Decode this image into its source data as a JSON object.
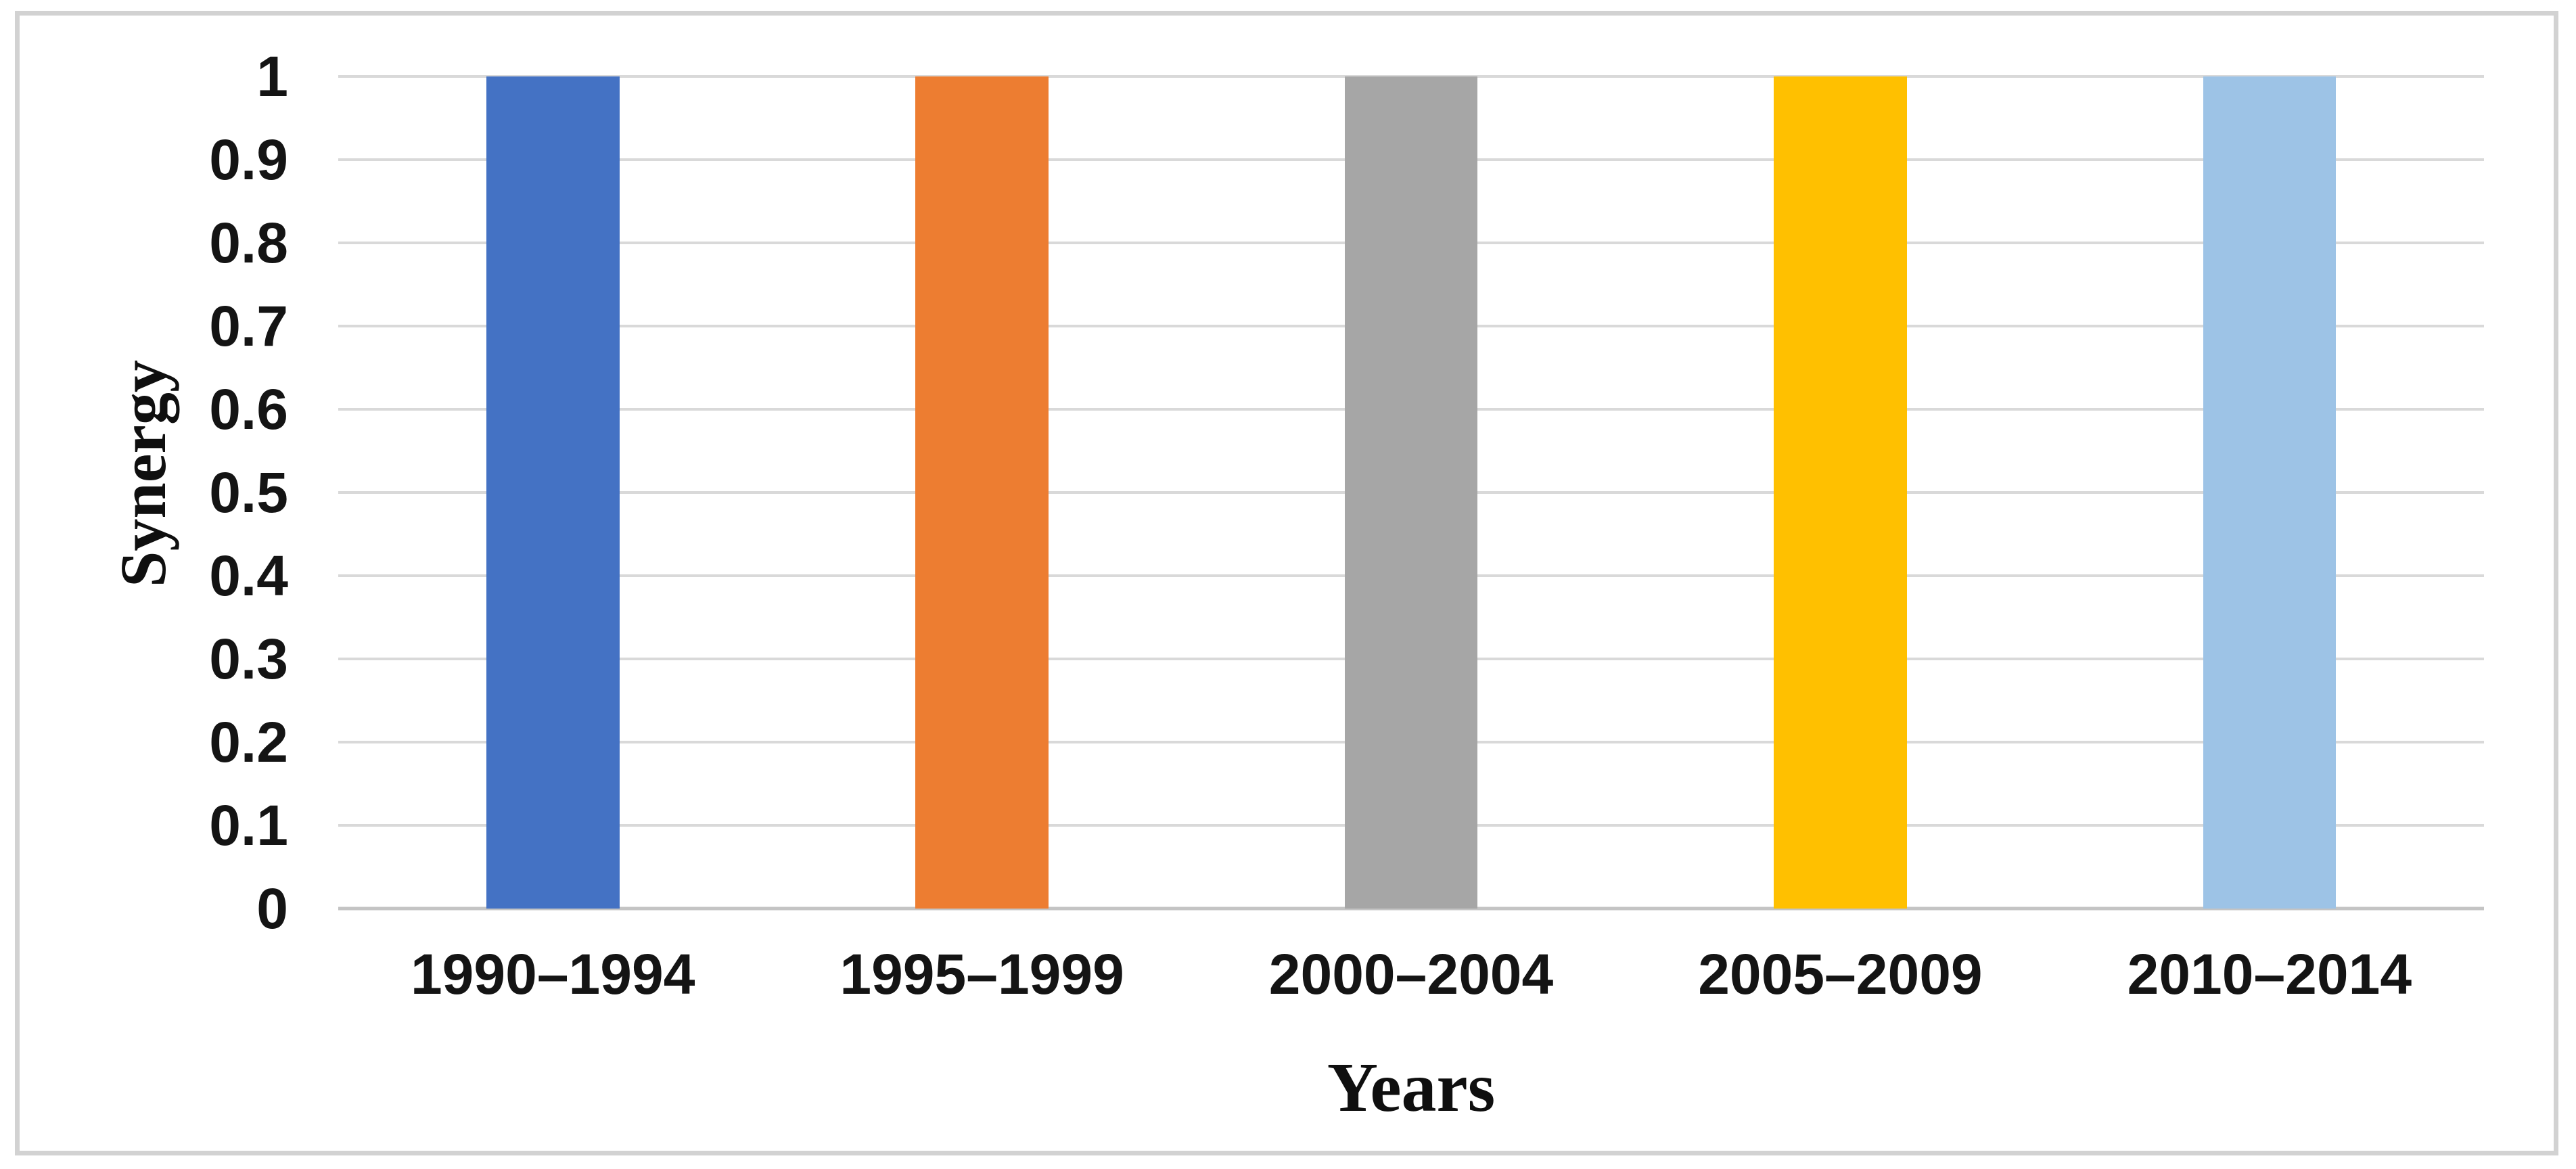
{
  "chart_data": {
    "type": "bar",
    "title": "",
    "categories": [
      "1990–1994",
      "1995–1999",
      "2000–2004",
      "2005–2009",
      "2010–2014"
    ],
    "values": [
      1,
      1,
      1,
      1,
      1
    ],
    "bar_colors": [
      "#4472C4",
      "#ED7D31",
      "#A6A6A6",
      "#FFC000",
      "#9DC3E6"
    ],
    "xlabel": "Years",
    "ylabel": "Synergy",
    "ylim": [
      0,
      1
    ],
    "yticks": [
      "1",
      "0.9",
      "0.8",
      "0.7",
      "0.6",
      "0.5",
      "0.4",
      "0.3",
      "0.2",
      "0.1",
      "0"
    ],
    "grid": "horizontal",
    "legend": "none",
    "style": {
      "gridline_color": "#D9D9D9",
      "baseline_color": "#C4C4C4",
      "frame_border_color": "#D2D2D2",
      "background": "#FFFFFF",
      "text_color": "#141414"
    }
  }
}
